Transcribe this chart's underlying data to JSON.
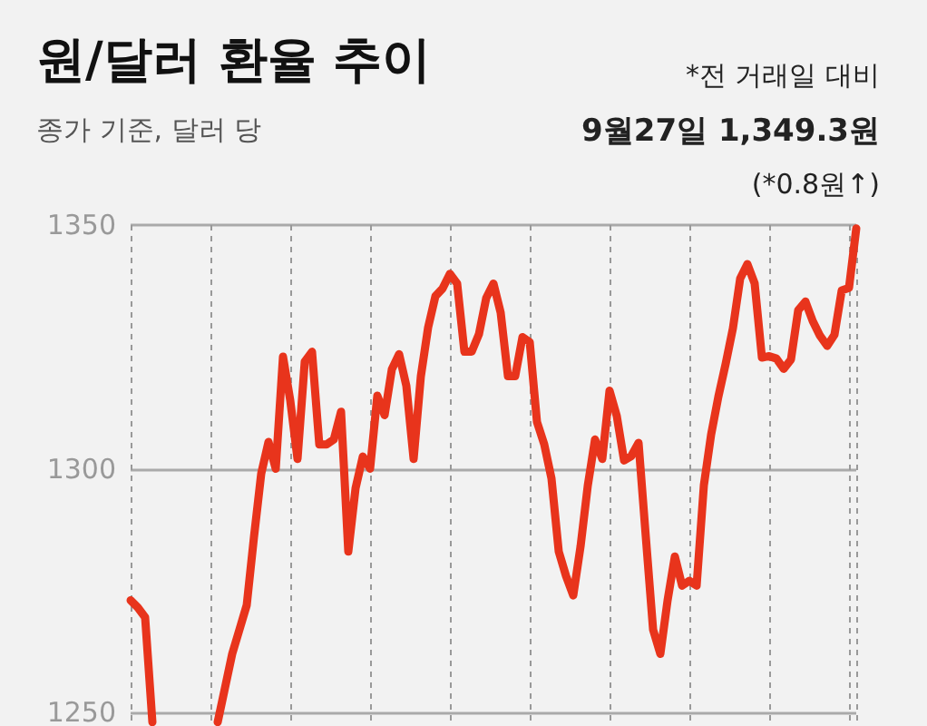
{
  "chart_data": {
    "type": "line",
    "title": "원/달러 환율 추이",
    "subtitle": "종가 기준, 달러 당",
    "annotations": [
      "*전 거래일 대비",
      "9월27일 1,349.3원",
      "(*0.8원↑)"
    ],
    "categories": [
      null,
      null,
      null,
      null,
      null,
      null,
      null,
      null,
      null,
      null,
      null,
      null,
      null,
      null,
      null,
      null,
      null,
      null,
      null,
      null,
      null,
      null,
      null,
      null,
      null,
      null,
      null,
      null,
      null,
      null,
      null,
      null,
      null,
      null,
      null,
      null,
      null,
      null,
      null,
      null,
      null,
      null,
      null,
      null,
      null,
      null,
      null,
      null,
      null,
      null,
      null,
      null,
      null,
      null,
      null,
      null,
      null,
      null,
      null,
      null,
      null,
      null,
      null,
      null,
      null,
      null,
      null,
      null,
      null,
      null,
      null,
      null,
      null,
      null,
      null,
      null,
      null,
      null,
      null,
      null,
      null,
      null,
      null,
      null,
      null,
      null,
      null,
      null,
      null,
      null,
      null,
      null,
      null,
      null,
      null,
      null,
      null,
      null,
      null,
      null,
      null
    ],
    "series": [
      {
        "color": "#e8341c",
        "values": [
          1273,
          1271.5,
          1269.5,
          1248,
          null,
          null,
          null,
          null,
          null,
          null,
          null,
          null,
          null,
          null,
          null,
          null,
          null,
          null,
          null,
          null,
          null,
          null,
          null,
          null,
          null,
          null,
          null,
          null,
          null,
          null,
          null,
          null,
          null,
          null,
          null,
          null,
          null,
          null,
          null,
          null,
          null,
          null,
          null,
          null,
          null,
          null,
          null,
          null,
          null,
          null,
          null,
          null,
          null,
          null,
          null,
          null,
          null,
          null,
          null,
          null,
          null,
          null,
          null,
          null,
          null,
          null,
          null,
          null,
          null,
          null,
          null,
          null,
          null,
          null,
          null,
          null,
          null,
          null,
          null,
          null,
          null,
          null,
          null,
          null,
          null,
          null,
          null,
          null,
          null,
          null,
          null,
          null,
          null,
          null,
          null,
          null,
          null,
          null,
          null,
          null,
          null
        ]
      },
      {
        "color": "#e8341c",
        "values": [
          null,
          null,
          null,
          null,
          null,
          null,
          null,
          null,
          null,
          null,
          null,
          null,
          1248,
          1255,
          1262,
          1267,
          1272,
          1286,
          1299,
          1305.5,
          1300,
          1323,
          1314,
          1302,
          1322,
          1324,
          1305,
          1305,
          1306,
          1311.7,
          1283,
          1296,
          1302.5,
          1300,
          1315,
          1311,
          1320.4,
          1323.5,
          1317,
          1302,
          1319,
          1329,
          1335.4,
          1337,
          1340,
          1338,
          1324,
          1324,
          1327.6,
          1335,
          1338,
          1332,
          1319,
          1319,
          1327,
          1326,
          1309.6,
          1305,
          1298,
          1283,
          1278,
          1274,
          1284,
          1296.5,
          1306,
          1302,
          1316,
          1310.8,
          1301.7,
          1302.6,
          1305.3,
          1286,
          1267,
          1262,
          1273,
          1282,
          1276,
          1277,
          1276,
          1296.6,
          1307,
          1314.8,
          1321.5,
          1328.8,
          1339,
          1342,
          1338,
          1322.8,
          1323.1,
          1322.6,
          1320.5,
          1322.4,
          1332.5,
          1334.3,
          1330.3,
          1327.3,
          1325.2,
          1327.5,
          1336.6,
          1337.1,
          1349.3
        ]
      }
    ],
    "ylim": [
      1248,
      1350
    ],
    "yticks": [
      1250,
      1300,
      1350
    ],
    "grid": true,
    "tick_labels": "y",
    "line_style": "solid"
  }
}
